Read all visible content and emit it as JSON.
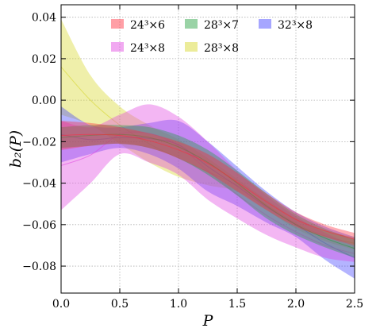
{
  "chart_data": {
    "type": "area",
    "xlabel": "P",
    "ylabel": "b₂(P)",
    "xlim": [
      0.0,
      2.5
    ],
    "ylim": [
      -0.093,
      0.046
    ],
    "grid": true,
    "legend_position": "top",
    "xticks": [
      "0.0",
      "0.5",
      "1.0",
      "1.5",
      "2.0",
      "2.5"
    ],
    "xtick_values": [
      0.0,
      0.5,
      1.0,
      1.5,
      2.0,
      2.5
    ],
    "yticks": [
      "0.04",
      "0.02",
      "0.00",
      "−0.02",
      "−0.04",
      "−0.06",
      "−0.08"
    ],
    "ytick_values": [
      0.04,
      0.02,
      0.0,
      -0.02,
      -0.04,
      -0.06,
      -0.08
    ],
    "series": [
      {
        "name": "24³×6",
        "color": "#ff2a3a",
        "x": [
          0.0,
          0.25,
          0.5,
          0.75,
          1.0,
          1.25,
          1.5,
          1.75,
          2.0,
          2.25,
          2.5
        ],
        "upper": [
          -0.01,
          -0.011,
          -0.013,
          -0.016,
          -0.02,
          -0.026,
          -0.035,
          -0.045,
          -0.054,
          -0.06,
          -0.064
        ],
        "lower": [
          -0.024,
          -0.022,
          -0.021,
          -0.023,
          -0.028,
          -0.035,
          -0.044,
          -0.053,
          -0.061,
          -0.066,
          -0.07
        ]
      },
      {
        "name": "28³×7",
        "color": "#1e9e3a",
        "x": [
          0.0,
          0.25,
          0.5,
          0.75,
          1.0,
          1.25,
          1.5,
          1.75,
          2.0,
          2.25,
          2.5
        ],
        "upper": [
          -0.013,
          -0.012,
          -0.012,
          -0.013,
          -0.017,
          -0.024,
          -0.034,
          -0.045,
          -0.055,
          -0.062,
          -0.067
        ],
        "lower": [
          -0.023,
          -0.022,
          -0.021,
          -0.023,
          -0.028,
          -0.036,
          -0.046,
          -0.057,
          -0.065,
          -0.071,
          -0.076
        ]
      },
      {
        "name": "32³×8",
        "color": "#3a3aff",
        "x": [
          0.0,
          0.25,
          0.5,
          0.75,
          1.0,
          1.25,
          1.5,
          1.75,
          2.0,
          2.25,
          2.5
        ],
        "upper": [
          -0.003,
          -0.012,
          -0.013,
          -0.011,
          -0.01,
          -0.02,
          -0.032,
          -0.044,
          -0.054,
          -0.061,
          -0.066
        ],
        "lower": [
          -0.03,
          -0.026,
          -0.023,
          -0.026,
          -0.033,
          -0.044,
          -0.051,
          -0.059,
          -0.066,
          -0.077,
          -0.086
        ]
      },
      {
        "name": "24³×8",
        "color": "#e040e0",
        "x": [
          0.0,
          0.25,
          0.5,
          0.75,
          1.0,
          1.25,
          1.5,
          1.75,
          2.0,
          2.25,
          2.5
        ],
        "upper": [
          -0.01,
          -0.013,
          -0.007,
          -0.002,
          -0.008,
          -0.02,
          -0.034,
          -0.046,
          -0.056,
          -0.064,
          -0.07
        ],
        "lower": [
          -0.053,
          -0.04,
          -0.026,
          -0.03,
          -0.036,
          -0.048,
          -0.057,
          -0.065,
          -0.071,
          -0.076,
          -0.078
        ]
      },
      {
        "name": "28³×8",
        "color": "#d4d420",
        "x": [
          0.0,
          0.25,
          0.5,
          0.75,
          1.0,
          1.25,
          1.5,
          1.75,
          2.0,
          2.25,
          2.5
        ],
        "upper": [
          0.039,
          0.012,
          -0.003,
          -0.012,
          -0.019,
          -0.028,
          -0.038,
          -0.048,
          -0.057,
          -0.063,
          -0.066
        ],
        "lower": [
          -0.007,
          -0.012,
          -0.021,
          -0.03,
          -0.037,
          -0.041,
          -0.044,
          -0.053,
          -0.062,
          -0.068,
          -0.072
        ]
      }
    ]
  }
}
